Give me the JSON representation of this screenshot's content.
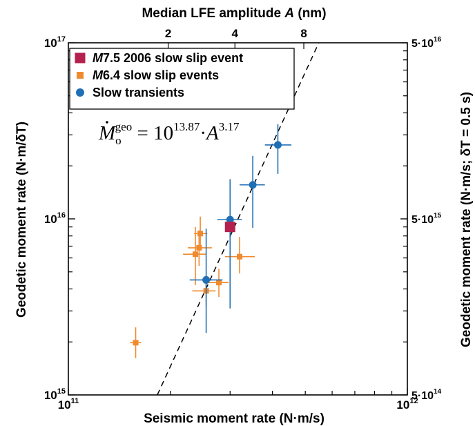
{
  "chart_data": {
    "type": "scatter",
    "xlabel": "Seismic moment rate (N·m/s)",
    "ylabel_left": "Geodetic moment rate (N·m/δT)",
    "ylabel_right": "Geodetic moment rate (N·m/s; δT = 0.5 s)",
    "top_axis_label": "Median LFE amplitude A (nm)",
    "x_scale": "log",
    "y_scale": "log",
    "xlim": [
      100000000000.0,
      1000000000000.0
    ],
    "ylim": [
      1000000000000000.0,
      1e+17
    ],
    "x_ticks": [
      {
        "value": 100000000000.0,
        "base": "10",
        "exp": "11"
      },
      {
        "value": 1000000000000.0,
        "base": "10",
        "exp": "12"
      }
    ],
    "y_ticks_left": [
      {
        "value": 1000000000000000.0,
        "base": "10",
        "exp": "15"
      },
      {
        "value": 1e+16,
        "base": "10",
        "exp": "16"
      },
      {
        "value": 1e+17,
        "base": "10",
        "exp": "17"
      }
    ],
    "y_ticks_right": [
      {
        "value": 1000000000000000.0,
        "base": "5·10",
        "exp": "14"
      },
      {
        "value": 1e+16,
        "base": "5·10",
        "exp": "15"
      },
      {
        "value": 1e+17,
        "base": "5·10",
        "exp": "16"
      }
    ],
    "top_ticks": [
      {
        "label": "2",
        "x_value": 197000000000.0
      },
      {
        "label": "4",
        "x_value": 310000000000.0
      },
      {
        "label": "8",
        "x_value": 495000000000.0
      }
    ],
    "formula": {
      "lhs": "M",
      "lhs_sub": "o",
      "lhs_sup": "geo",
      "rhs": "= 10",
      "exp": "13.87",
      "mid": "·A",
      "exp2": "3.17"
    },
    "fit_line": {
      "slope_loglog": 3.17,
      "points": [
        [
          183000000000.0,
          1000000000000000.0
        ],
        [
          548000000000.0,
          1e+17
        ]
      ]
    },
    "legend_position": "top-left",
    "series": [
      {
        "name_prefix": "M",
        "name": "7.5 2006 slow slip event",
        "color": "#b5214f",
        "marker": "square-large",
        "points": [
          {
            "x": 300000000000.0,
            "y": 9000000000000000.0
          }
        ]
      },
      {
        "name_prefix": "M",
        "name": "6.4 slow slip events",
        "color": "#f08a2e",
        "marker": "square",
        "points": [
          {
            "x": 158000000000.0,
            "y": 1980000000000000.0,
            "x_err": [
              152000000000.0,
              164000000000.0
            ],
            "y_err": [
              1620000000000000.0,
              2420000000000000.0
            ]
          },
          {
            "x": 237000000000.0,
            "y": 6300000000000000.0,
            "x_err": [
              218000000000.0,
              255000000000.0
            ],
            "y_err": [
              4200000000000000.0,
              9000000000000000.0
            ]
          },
          {
            "x": 243000000000.0,
            "y": 6850000000000000.0,
            "x_err": [
              225000000000.0,
              265000000000.0
            ],
            "y_err": [
              5400000000000000.0,
              8600000000000000.0
            ]
          },
          {
            "x": 245000000000.0,
            "y": 8250000000000000.0,
            "x_err": [
              235000000000.0,
              257000000000.0
            ],
            "y_err": [
              6900000000000000.0,
              1.03e+16
            ]
          },
          {
            "x": 255000000000.0,
            "y": 3900000000000000.0,
            "x_err": [
              232000000000.0,
              272000000000.0
            ],
            "y_err": [
              3200000000000000.0,
              4800000000000000.0
            ]
          },
          {
            "x": 278000000000.0,
            "y": 4350000000000000.0,
            "x_err": [
              258000000000.0,
              297000000000.0
            ],
            "y_err": [
              3600000000000000.0,
              5200000000000000.0
            ]
          },
          {
            "x": 320000000000.0,
            "y": 6100000000000000.0,
            "x_err": [
              290000000000.0,
              355000000000.0
            ],
            "y_err": [
              4900000000000000.0,
              7900000000000000.0
            ]
          }
        ]
      },
      {
        "name": "Slow transients",
        "color": "#1f6fb5",
        "marker": "circle",
        "points": [
          {
            "x": 255000000000.0,
            "y": 4500000000000000.0,
            "x_err": [
              228000000000.0,
              285000000000.0
            ],
            "y_err": [
              2250000000000000.0,
              8800000000000000.0
            ]
          },
          {
            "x": 300000000000.0,
            "y": 9900000000000000.0,
            "x_err": [
              275000000000.0,
              325000000000.0
            ],
            "y_err": [
              3100000000000000.0,
              1.68e+16
            ]
          },
          {
            "x": 350000000000.0,
            "y": 1.56e+16,
            "x_err": [
              320000000000.0,
              380000000000.0
            ],
            "y_err": [
              8900000000000000.0,
              2.28e+16
            ]
          },
          {
            "x": 415000000000.0,
            "y": 2.63e+16,
            "x_err": [
              380000000000.0,
              455000000000.0
            ],
            "y_err": [
              1.8e+16,
              3.45e+16
            ]
          }
        ]
      }
    ]
  }
}
